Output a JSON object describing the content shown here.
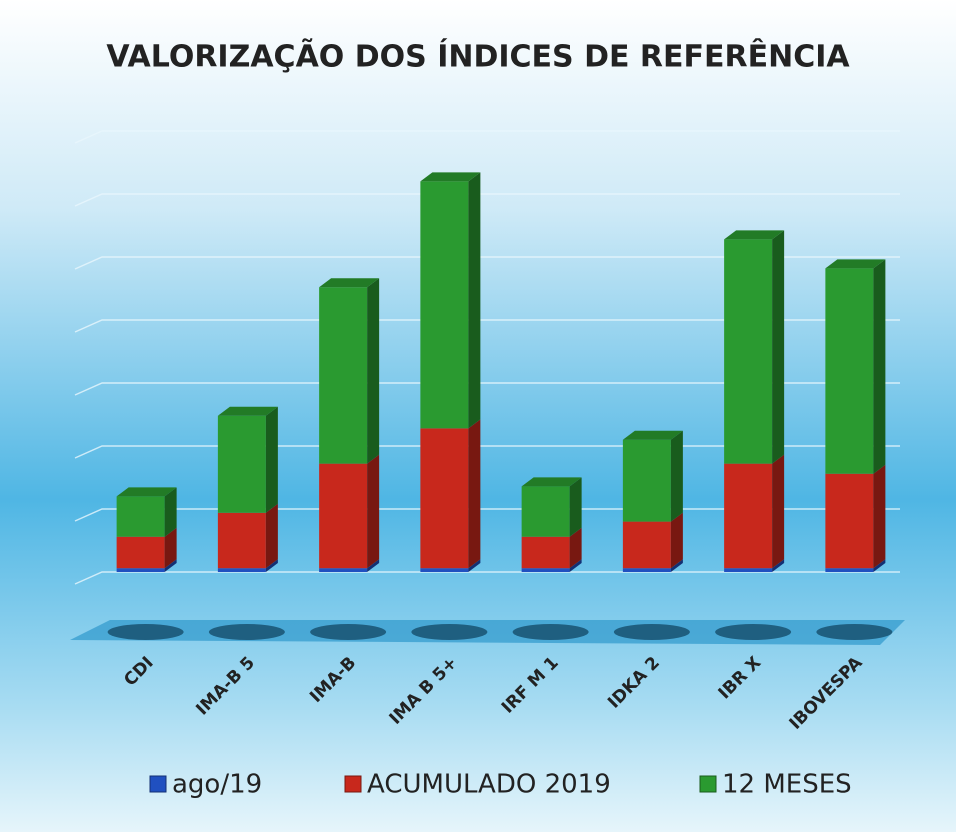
{
  "chart_data": {
    "type": "bar3d_stacked",
    "title": "VALORIZAÇÃO DOS ÍNDICES DE REFERÊNCIA",
    "categories": [
      "CDI",
      "IMA-B 5",
      "IMA-B",
      "IMA B 5+",
      "IRF M 1",
      "IDKA 2",
      "IBR X",
      "IBOVESPA"
    ],
    "series": [
      {
        "name": "ago/19",
        "color": "#2050c0",
        "values": [
          0.3,
          0.3,
          0.3,
          0.3,
          0.3,
          0.3,
          0.3,
          0.3
        ]
      },
      {
        "name": "ACUMULADO 2019",
        "color": "#c8281c",
        "values": [
          2.5,
          4.4,
          8.3,
          11.1,
          2.5,
          3.7,
          8.3,
          7.5
        ]
      },
      {
        "name": "12 MESES",
        "color": "#2a9a30",
        "values": [
          3.2,
          7.7,
          14.0,
          19.6,
          4.0,
          6.5,
          17.8,
          16.3
        ]
      }
    ],
    "ylim": [
      0,
      35
    ],
    "yticks": [
      0,
      5,
      10,
      15,
      20,
      25,
      30,
      35
    ],
    "grid": true,
    "stacked": true
  }
}
